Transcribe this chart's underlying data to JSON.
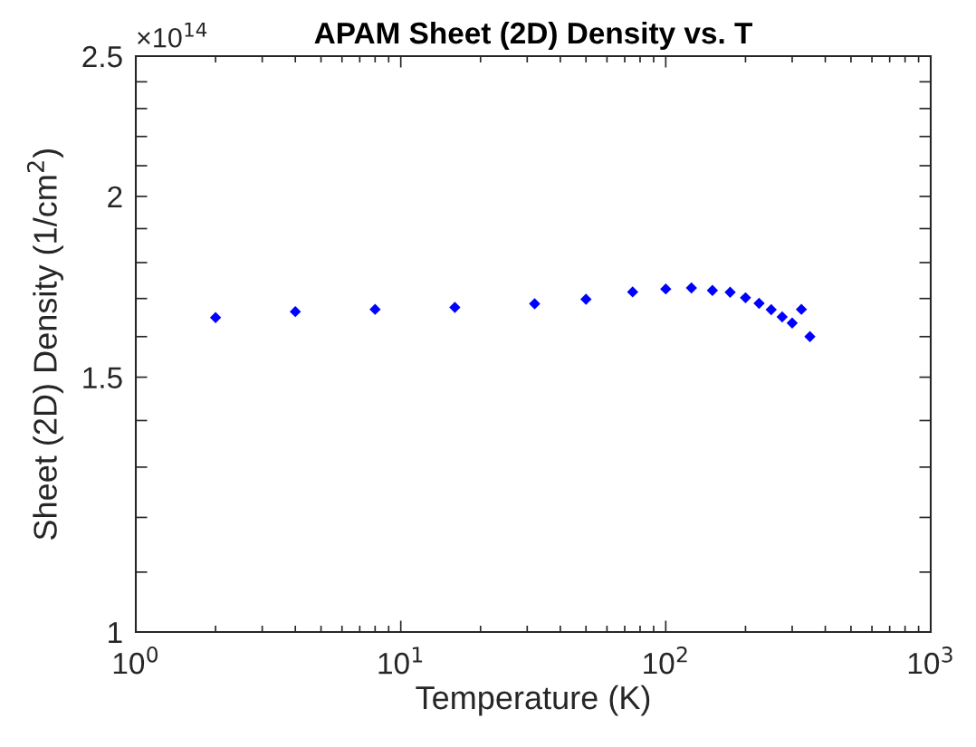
{
  "chart_data": {
    "type": "scatter",
    "title": "APAM Sheet (2D) Density vs. T",
    "xlabel": "Temperature (K)",
    "ylabel": "Sheet (2D) Density (1/cm$^{2}$)",
    "annotations": [
      "×10$^{14}$"
    ],
    "x": [
      2,
      4,
      8,
      16,
      32,
      50,
      75,
      100,
      125,
      150,
      175,
      200,
      225,
      250,
      275,
      300,
      325,
      350
    ],
    "series": [
      {
        "color": "#0000ff",
        "values": [
          1.649,
          1.665,
          1.671,
          1.676,
          1.686,
          1.698,
          1.718,
          1.726,
          1.729,
          1.722,
          1.717,
          1.702,
          1.687,
          1.67,
          1.651,
          1.635,
          1.671,
          1.6
        ]
      }
    ],
    "marker": "diamond",
    "log": "xy",
    "grid": false,
    "xlim": [
      1,
      1000
    ],
    "xticks": [
      {
        "value": 1,
        "label": "10$^{0}$"
      },
      {
        "value": 10,
        "label": "10$^{1}$"
      },
      {
        "value": 100,
        "label": "10$^{2}$"
      },
      {
        "value": 1000,
        "label": "10$^{3}$"
      }
    ],
    "ylim": [
      1,
      2.5
    ],
    "yticks": [
      1,
      {
        "value": 1.1,
        "label": null
      },
      {
        "value": 1.2,
        "label": null
      },
      {
        "value": 1.3,
        "label": null
      },
      {
        "value": 1.4,
        "label": null
      },
      1.5,
      {
        "value": 1.6,
        "label": null
      },
      {
        "value": 1.7,
        "label": null
      },
      {
        "value": 1.8,
        "label": null
      },
      {
        "value": 1.9,
        "label": null
      },
      2,
      {
        "value": 2.1,
        "label": null
      },
      {
        "value": 2.2,
        "label": null
      },
      {
        "value": 2.3,
        "label": null
      },
      {
        "value": 2.4,
        "label": null
      },
      2.5
    ]
  }
}
